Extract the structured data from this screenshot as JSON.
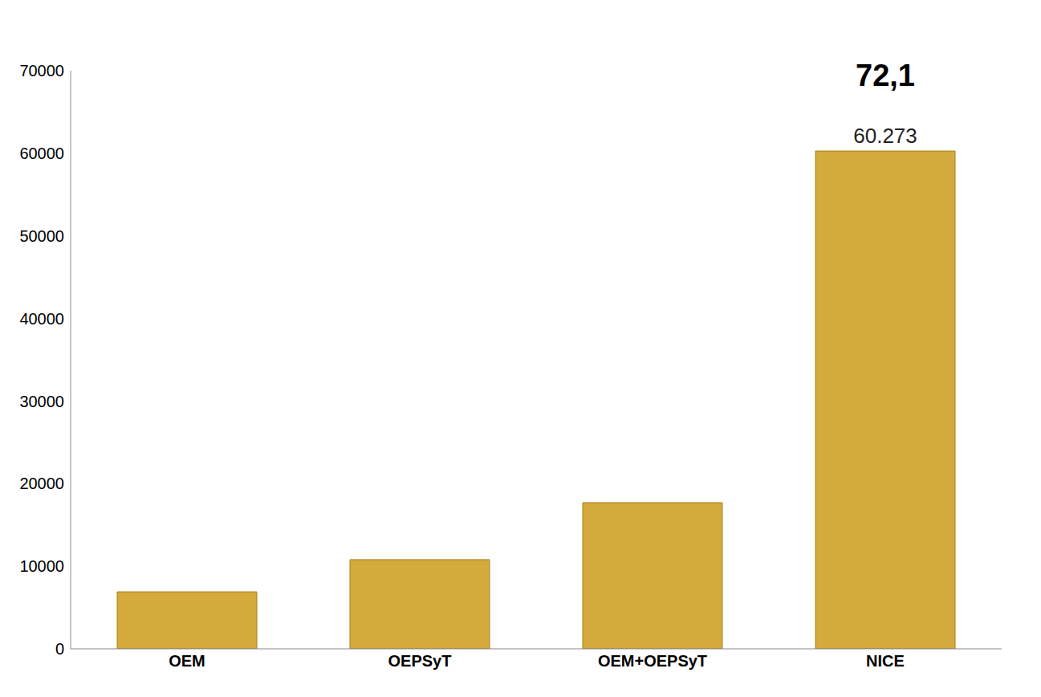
{
  "chart_data": {
    "type": "bar",
    "categories": [
      "OEM",
      "OEPSyT",
      "OEM+OEPSyT",
      "NICE"
    ],
    "values": [
      6900,
      10800,
      17700,
      60273
    ],
    "value_labels": [
      null,
      null,
      null,
      "60.273"
    ],
    "data_labels": true,
    "annotation": "72,1",
    "color": "#d4aa3c",
    "ylim": [
      0,
      70000
    ],
    "yticks": [
      0,
      10000,
      20000,
      30000,
      40000,
      50000,
      60000,
      70000
    ],
    "grid": false
  }
}
